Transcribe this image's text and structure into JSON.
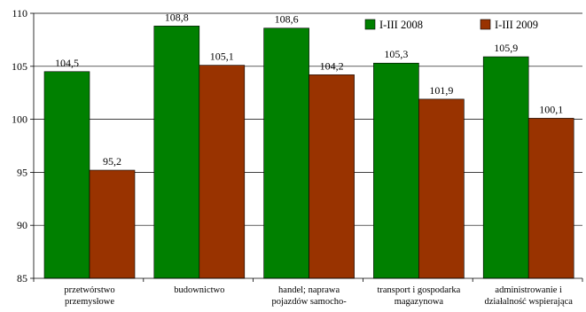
{
  "chart_data": {
    "type": "bar",
    "categories": [
      [
        "przetwórstwo",
        "przemysłowe"
      ],
      [
        "budownictwo"
      ],
      [
        "handel; naprawa",
        "pojazdów samocho-"
      ],
      [
        "transport i gospodarka",
        "magazynowa"
      ],
      [
        "administrowanie i",
        "działalność wspierająca"
      ]
    ],
    "series": [
      {
        "name": "I-III 2008",
        "color": "#008000",
        "values": [
          104.5,
          108.8,
          108.6,
          105.3,
          105.9
        ],
        "labels": [
          "104,5",
          "108,8",
          "108,6",
          "105,3",
          "105,9"
        ]
      },
      {
        "name": "I-III 2009",
        "color": "#993300",
        "values": [
          95.2,
          105.1,
          104.2,
          101.9,
          100.1
        ],
        "labels": [
          "95,2",
          "105,1",
          "104,2",
          "101,9",
          "100,1"
        ]
      }
    ],
    "ylim": [
      85,
      110
    ],
    "yticks": [
      85,
      90,
      95,
      100,
      105,
      110
    ],
    "grid": true,
    "legend_position": "top-right"
  }
}
